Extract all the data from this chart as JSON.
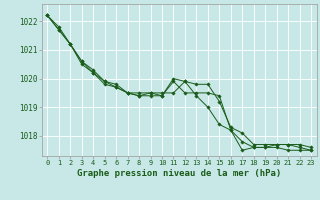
{
  "title": "Graphe pression niveau de la mer (hPa)",
  "background_color": "#c8e8e8",
  "grid_color": "#ffffff",
  "line_color": "#1a5c1a",
  "xlim": [
    -0.5,
    23.5
  ],
  "ylim": [
    1017.3,
    1022.6
  ],
  "yticks": [
    1018,
    1019,
    1020,
    1021,
    1022
  ],
  "xticks": [
    0,
    1,
    2,
    3,
    4,
    5,
    6,
    7,
    8,
    9,
    10,
    11,
    12,
    13,
    14,
    15,
    16,
    17,
    18,
    19,
    20,
    21,
    22,
    23
  ],
  "series": [
    [
      1022.2,
      1021.8,
      1021.2,
      1020.6,
      1020.3,
      1019.9,
      1019.8,
      1019.5,
      1019.5,
      1019.5,
      1019.5,
      1019.5,
      1019.9,
      1019.8,
      1019.8,
      1019.2,
      1018.3,
      1018.1,
      1017.7,
      1017.7,
      1017.7,
      1017.7,
      1017.7,
      1017.6
    ],
    [
      1022.2,
      1021.7,
      1021.2,
      1020.5,
      1020.2,
      1019.9,
      1019.7,
      1019.5,
      1019.4,
      1019.4,
      1019.4,
      1020.0,
      1019.9,
      1019.4,
      1019.0,
      1018.4,
      1018.2,
      1017.5,
      1017.6,
      1017.6,
      1017.6,
      1017.5,
      1017.5,
      1017.5
    ],
    [
      1022.2,
      1021.7,
      1021.2,
      1020.6,
      1020.2,
      1019.8,
      1019.7,
      1019.5,
      1019.4,
      1019.5,
      1019.4,
      1019.9,
      1019.5,
      1019.5,
      1019.5,
      1019.4,
      1018.2,
      1017.8,
      1017.6,
      1017.6,
      1017.7,
      1017.7,
      1017.6,
      1017.5
    ]
  ],
  "xlabel_fontsize": 6.5,
  "ytick_fontsize": 5.5,
  "xtick_fontsize": 5.0
}
